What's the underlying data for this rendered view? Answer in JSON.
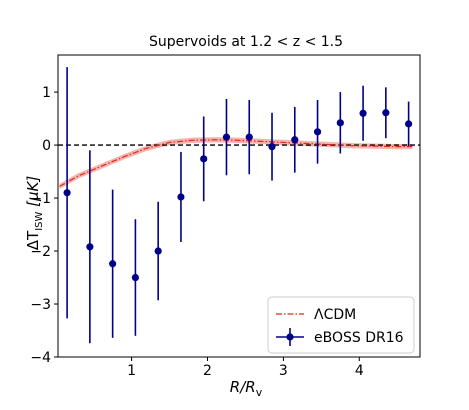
{
  "chart_data": {
    "type": "scatter",
    "title": "Supervoids at 1.2 < z < 1.5",
    "xlabel": {
      "main": "R/R",
      "sub": "v"
    },
    "ylabel": {
      "main": "ΔT",
      "sub": "ISW",
      "unit": "[μK]"
    },
    "xlim": [
      0.03,
      4.8
    ],
    "ylim": [
      -4,
      1.7
    ],
    "xticks": [
      1,
      2,
      3,
      4
    ],
    "yticks": [
      -4,
      -3,
      -2,
      -1,
      0,
      1
    ],
    "zero_line": {
      "y": 0,
      "style": "dashed",
      "color": "#000000"
    },
    "model": {
      "name": "ΛCDM",
      "color": "#e0281e",
      "band_color": "#f4a7a0",
      "band_halfwidth": 0.05,
      "x": [
        0.05,
        0.3,
        0.6,
        0.9,
        1.2,
        1.5,
        1.8,
        2.1,
        2.4,
        2.7,
        3.0,
        3.3,
        3.6,
        3.9,
        4.2,
        4.5,
        4.7
      ],
      "y": [
        -0.78,
        -0.58,
        -0.4,
        -0.22,
        -0.06,
        0.05,
        0.09,
        0.1,
        0.09,
        0.07,
        0.05,
        0.03,
        0.01,
        -0.01,
        -0.02,
        -0.03,
        -0.03
      ]
    },
    "series": [
      {
        "name": "eBOSS DR16",
        "color": "#00008b",
        "x": [
          0.15,
          0.45,
          0.75,
          1.05,
          1.35,
          1.65,
          1.95,
          2.25,
          2.55,
          2.85,
          3.15,
          3.45,
          3.75,
          4.05,
          4.35,
          4.65
        ],
        "y": [
          -0.9,
          -1.92,
          -2.24,
          -2.5,
          -2.0,
          -0.98,
          -0.26,
          0.15,
          0.15,
          -0.03,
          0.1,
          0.25,
          0.42,
          0.6,
          0.61,
          0.4
        ],
        "yerr": [
          2.37,
          1.82,
          1.4,
          1.1,
          0.93,
          0.85,
          0.8,
          0.72,
          0.7,
          0.64,
          0.62,
          0.6,
          0.58,
          0.52,
          0.48,
          0.42
        ]
      }
    ],
    "legend": {
      "location": "bottom-right",
      "entries": [
        "ΛCDM",
        "eBOSS DR16"
      ]
    }
  }
}
